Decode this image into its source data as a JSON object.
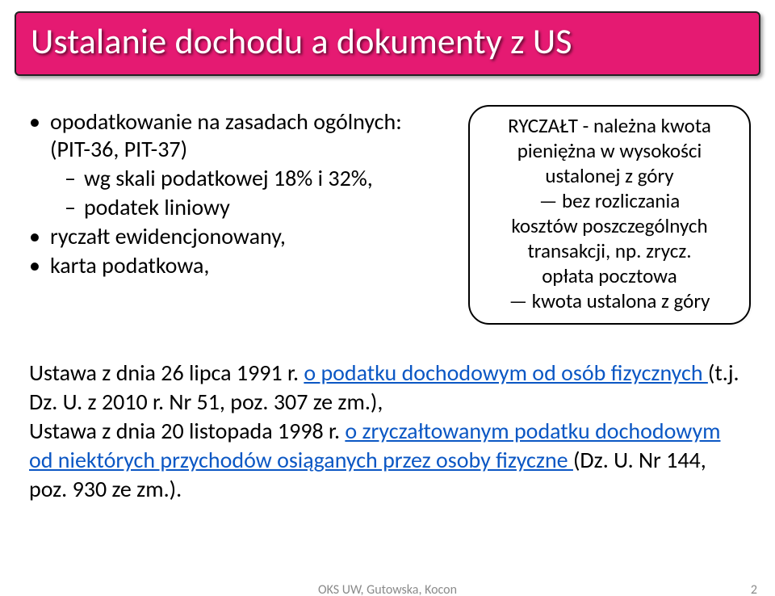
{
  "colors": {
    "title_bg": "#e51a72",
    "title_text": "#ffffff",
    "body_text": "#000000",
    "link": "#0b57c4",
    "footer": "#8a8a8a",
    "callout_border": "#000000",
    "slide_bg": "#ffffff"
  },
  "typography": {
    "title_fontsize": 44,
    "body_fontsize": 28,
    "callout_fontsize": 25,
    "footer_fontsize": 16,
    "font_family": "Calibri"
  },
  "title": "Ustalanie dochodu a dokumenty z US",
  "left": {
    "b1": "opodatkowanie na zasadach ogólnych: (PIT-36, PIT-37)",
    "b1_sub1": "wg skali podatkowej 18% i 32%,",
    "b1_sub2": "podatek liniowy",
    "b2": "ryczałt ewidencjonowany,",
    "b3": "karta podatkowa,"
  },
  "callout": {
    "l1": "RYCZAŁT - należna kwota",
    "l2": "pieniężna w wysokości",
    "l3": "ustalonej z góry",
    "l4": "— bez rozliczania",
    "l5": "kosztów poszczególnych",
    "l6": "transakcji, np. zrycz.",
    "l7": "opłata pocztowa",
    "l8": "— kwota ustalona z góry"
  },
  "lower": {
    "p1_pre": "Ustawa z dnia 26 lipca 1991 r. ",
    "p1_link": "o podatku dochodowym od osób fizycznych ",
    "p1_post": "(t.j. Dz. U. z 2010 r. Nr 51, poz. 307 ze zm.),",
    "p2_pre": "Ustawa z dnia 20 listopada 1998 r. ",
    "p2_link": "o zryczałtowanym podatku dochodowym od niektórych przychodów osiąganych przez osoby fizyczne ",
    "p2_post": "(Dz. U. Nr 144, poz. 930 ze zm.)."
  },
  "footer": "OKS UW, Gutowska, Kocon",
  "page_number": "2"
}
